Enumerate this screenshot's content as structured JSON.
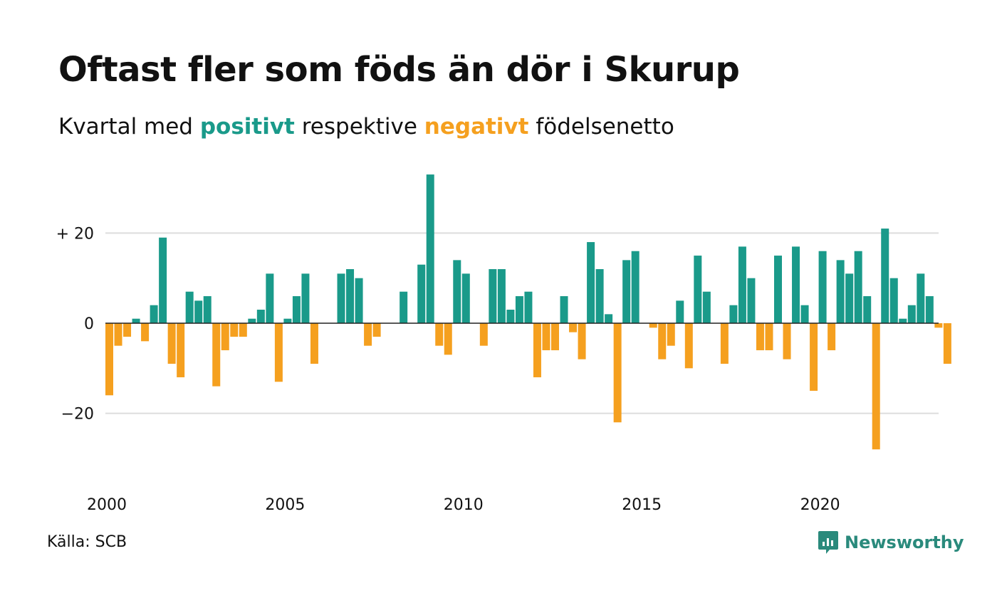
{
  "title": "Oftast fler som föds än dör i Skurup",
  "subtitle": {
    "prefix": "Kvartal med ",
    "positive_word": "positivt",
    "middle": " respektive ",
    "negative_word": "negativt",
    "suffix": " födelsenetto"
  },
  "source": "Källa: SCB",
  "brand": "Newsworthy",
  "colors": {
    "positive": "#1a9a8a",
    "negative": "#f5a01f",
    "grid": "#dddddd",
    "zero_line": "#222222",
    "brand": "#2a8a7c"
  },
  "chart_data": {
    "type": "bar",
    "xlabel": "",
    "ylabel": "",
    "ylim": [
      -33,
      35
    ],
    "y_ticks": [
      {
        "value": 20,
        "label": "+ 20"
      },
      {
        "value": 0,
        "label": "0"
      },
      {
        "value": -20,
        "label": "−20"
      }
    ],
    "x_ticks": [
      {
        "year": 2000,
        "label": "2000"
      },
      {
        "year": 2005,
        "label": "2005"
      },
      {
        "year": 2010,
        "label": "2010"
      },
      {
        "year": 2015,
        "label": "2015"
      },
      {
        "year": 2020,
        "label": "2020"
      }
    ],
    "start_year": 2000,
    "values": [
      -16,
      -5,
      -3,
      1,
      -4,
      4,
      19,
      -9,
      -12,
      7,
      5,
      6,
      -14,
      -6,
      -3,
      -3,
      1,
      3,
      11,
      -13,
      1,
      6,
      11,
      -9,
      0,
      0,
      11,
      12,
      10,
      -5,
      -3,
      0,
      0,
      7,
      0,
      13,
      33,
      -5,
      -7,
      14,
      11,
      0,
      -5,
      12,
      12,
      3,
      6,
      7,
      -12,
      -6,
      -6,
      6,
      -2,
      -8,
      18,
      12,
      2,
      -22,
      14,
      16,
      0,
      -1,
      -8,
      -5,
      5,
      -10,
      15,
      7,
      0,
      -9,
      4,
      17,
      10,
      -6,
      -6,
      15,
      -8,
      17,
      4,
      -15,
      16,
      -6,
      14,
      11,
      16,
      6,
      -28,
      21,
      10,
      1,
      4,
      11,
      6,
      -1,
      -9
    ]
  }
}
